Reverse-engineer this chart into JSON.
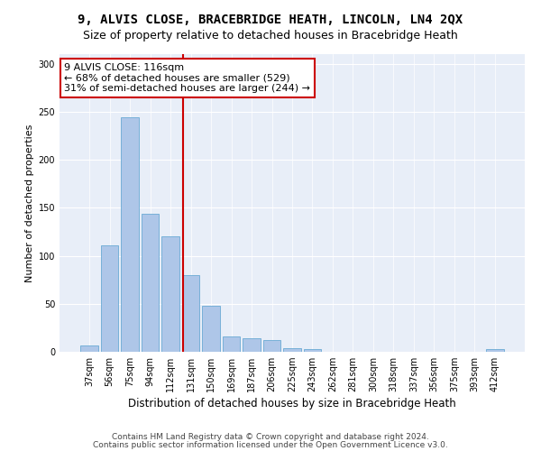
{
  "title1": "9, ALVIS CLOSE, BRACEBRIDGE HEATH, LINCOLN, LN4 2QX",
  "title2": "Size of property relative to detached houses in Bracebridge Heath",
  "xlabel": "Distribution of detached houses by size in Bracebridge Heath",
  "ylabel": "Number of detached properties",
  "categories": [
    "37sqm",
    "56sqm",
    "75sqm",
    "94sqm",
    "112sqm",
    "131sqm",
    "150sqm",
    "169sqm",
    "187sqm",
    "206sqm",
    "225sqm",
    "243sqm",
    "262sqm",
    "281sqm",
    "300sqm",
    "318sqm",
    "337sqm",
    "356sqm",
    "375sqm",
    "393sqm",
    "412sqm"
  ],
  "values": [
    7,
    111,
    244,
    144,
    120,
    80,
    48,
    16,
    14,
    12,
    4,
    3,
    0,
    0,
    0,
    0,
    0,
    0,
    0,
    0,
    3
  ],
  "bar_color": "#aec6e8",
  "bar_edge_color": "#6aaad4",
  "vline_x": 4.62,
  "vline_color": "#cc0000",
  "annotation_text": "9 ALVIS CLOSE: 116sqm\n← 68% of detached houses are smaller (529)\n31% of semi-detached houses are larger (244) →",
  "annotation_box_color": "#ffffff",
  "annotation_box_edge": "#cc0000",
  "ylim": [
    0,
    310
  ],
  "yticks": [
    0,
    50,
    100,
    150,
    200,
    250,
    300
  ],
  "bg_color": "#e8eef8",
  "footer1": "Contains HM Land Registry data © Crown copyright and database right 2024.",
  "footer2": "Contains public sector information licensed under the Open Government Licence v3.0.",
  "title1_fontsize": 10,
  "title2_fontsize": 9,
  "xlabel_fontsize": 8.5,
  "ylabel_fontsize": 8,
  "tick_fontsize": 7,
  "annotation_fontsize": 8,
  "footer_fontsize": 6.5
}
